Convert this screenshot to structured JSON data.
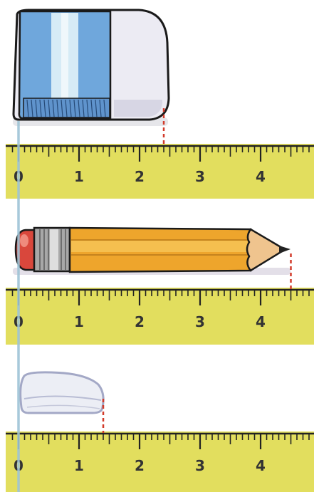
{
  "colors": {
    "ruler_fill": "#e2de5e",
    "ruler_ink": "#222222",
    "measure_mark": "#d23b2b",
    "guide_line": "#9ec4d6",
    "eraser_sleeve": "#6fa7dc",
    "eraser_rubber": "#ecebf3",
    "pencil_body": "#eea52c",
    "pencil_ferrule": "#9a9a9a",
    "pencil_eraser": "#d9473c",
    "pencil_wood": "#efc48e"
  },
  "rulers": [
    {
      "labels": [
        "0",
        "1",
        "2",
        "3",
        "4"
      ]
    },
    {
      "labels": [
        "0",
        "1",
        "2",
        "3",
        "4"
      ]
    },
    {
      "labels": [
        "0",
        "1",
        "2",
        "3",
        "4"
      ]
    }
  ],
  "objects": [
    {
      "icon": "eraser-with-sleeve-icon",
      "length_units": 2.4
    },
    {
      "icon": "pencil-icon",
      "length_units": 4.5
    },
    {
      "icon": "worn-eraser-icon",
      "length_units": 1.4
    }
  ]
}
